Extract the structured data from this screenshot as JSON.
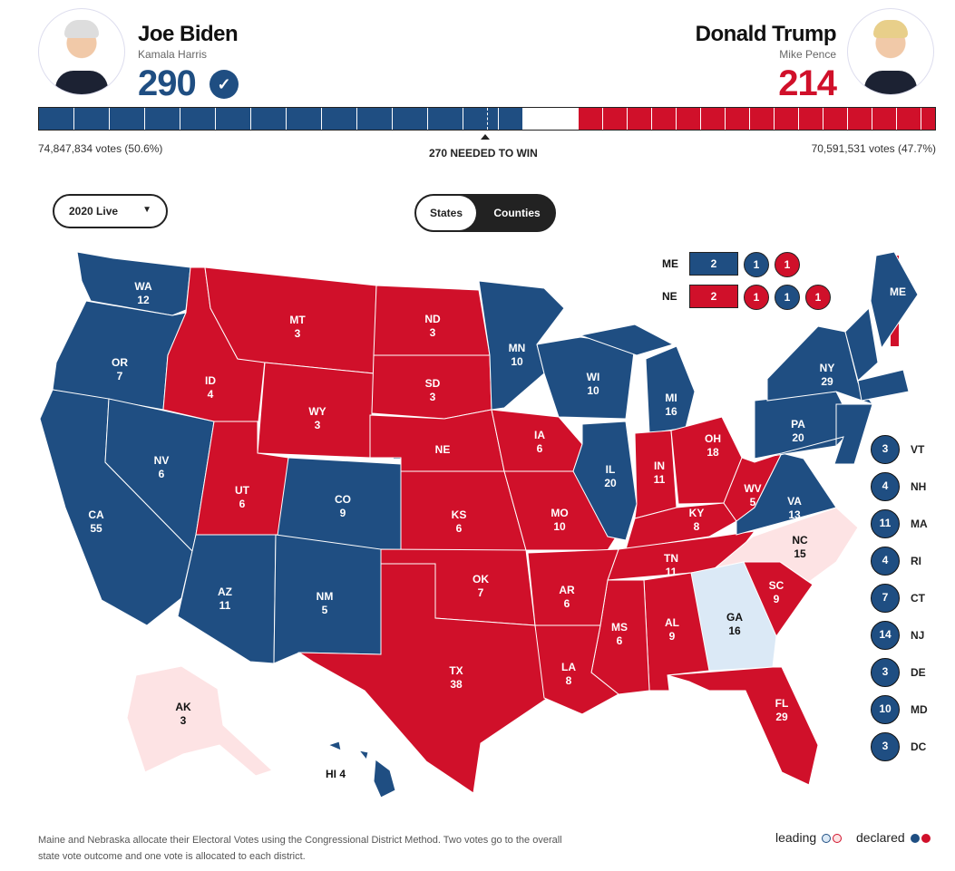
{
  "colors": {
    "dem": "#1f4e82",
    "rep": "#d0102a",
    "dem_leading": "#dbe9f6",
    "rep_leading": "#fde3e4"
  },
  "biden": {
    "name": "Joe Biden",
    "running_mate": "Kamala Harris",
    "ev": "290",
    "votes": "74,847,834 votes (50.6%)",
    "declared_icon": "check-circle-icon",
    "bar_fraction": 0.539
  },
  "trump": {
    "name": "Donald Trump",
    "running_mate": "Mike Pence",
    "ev": "214",
    "votes": "70,591,531 votes (47.7%)",
    "bar_fraction": 0.398
  },
  "needed": "270 NEEDED TO WIN",
  "controls": {
    "year_select": "2020 Live",
    "toggle": [
      "States",
      "Counties"
    ],
    "selected": "States"
  },
  "split_states": [
    {
      "abbr": "ME",
      "boxes": [
        {
          "v": "2",
          "p": "dem"
        },
        {
          "v": "1",
          "p": "dem"
        },
        {
          "v": "1",
          "p": "rep"
        }
      ]
    },
    {
      "abbr": "NE",
      "boxes": [
        {
          "v": "2",
          "p": "rep"
        },
        {
          "v": "1",
          "p": "rep"
        },
        {
          "v": "1",
          "p": "dem"
        },
        {
          "v": "1",
          "p": "rep"
        }
      ]
    }
  ],
  "small_states": [
    {
      "abbr": "VT",
      "ev": "3"
    },
    {
      "abbr": "NH",
      "ev": "4"
    },
    {
      "abbr": "MA",
      "ev": "11"
    },
    {
      "abbr": "RI",
      "ev": "4"
    },
    {
      "abbr": "CT",
      "ev": "7"
    },
    {
      "abbr": "NJ",
      "ev": "14"
    },
    {
      "abbr": "DE",
      "ev": "3"
    },
    {
      "abbr": "MD",
      "ev": "10"
    },
    {
      "abbr": "DC",
      "ev": "3"
    }
  ],
  "states": [
    {
      "abbr": "WA",
      "ev": "12",
      "s": "dem"
    },
    {
      "abbr": "OR",
      "ev": "7",
      "s": "dem"
    },
    {
      "abbr": "CA",
      "ev": "55",
      "s": "dem"
    },
    {
      "abbr": "NV",
      "ev": "6",
      "s": "dem"
    },
    {
      "abbr": "ID",
      "ev": "4",
      "s": "rep"
    },
    {
      "abbr": "MT",
      "ev": "3",
      "s": "rep"
    },
    {
      "abbr": "WY",
      "ev": "3",
      "s": "rep"
    },
    {
      "abbr": "UT",
      "ev": "6",
      "s": "rep"
    },
    {
      "abbr": "CO",
      "ev": "9",
      "s": "dem"
    },
    {
      "abbr": "AZ",
      "ev": "11",
      "s": "dem"
    },
    {
      "abbr": "NM",
      "ev": "5",
      "s": "dem"
    },
    {
      "abbr": "ND",
      "ev": "3",
      "s": "rep"
    },
    {
      "abbr": "SD",
      "ev": "3",
      "s": "rep"
    },
    {
      "abbr": "NE",
      "ev": "",
      "s": "rep"
    },
    {
      "abbr": "KS",
      "ev": "6",
      "s": "rep"
    },
    {
      "abbr": "OK",
      "ev": "7",
      "s": "rep"
    },
    {
      "abbr": "TX",
      "ev": "38",
      "s": "rep"
    },
    {
      "abbr": "MN",
      "ev": "10",
      "s": "dem"
    },
    {
      "abbr": "IA",
      "ev": "6",
      "s": "rep"
    },
    {
      "abbr": "MO",
      "ev": "10",
      "s": "rep"
    },
    {
      "abbr": "AR",
      "ev": "6",
      "s": "rep"
    },
    {
      "abbr": "LA",
      "ev": "8",
      "s": "rep"
    },
    {
      "abbr": "WI",
      "ev": "10",
      "s": "dem"
    },
    {
      "abbr": "IL",
      "ev": "20",
      "s": "dem"
    },
    {
      "abbr": "MI",
      "ev": "16",
      "s": "dem"
    },
    {
      "abbr": "IN",
      "ev": "11",
      "s": "rep"
    },
    {
      "abbr": "OH",
      "ev": "18",
      "s": "rep"
    },
    {
      "abbr": "KY",
      "ev": "8",
      "s": "rep"
    },
    {
      "abbr": "TN",
      "ev": "11",
      "s": "rep"
    },
    {
      "abbr": "MS",
      "ev": "6",
      "s": "rep"
    },
    {
      "abbr": "AL",
      "ev": "9",
      "s": "rep"
    },
    {
      "abbr": "WV",
      "ev": "5",
      "s": "rep"
    },
    {
      "abbr": "VA",
      "ev": "13",
      "s": "dem"
    },
    {
      "abbr": "NC",
      "ev": "15",
      "s": "rep_leading"
    },
    {
      "abbr": "SC",
      "ev": "9",
      "s": "rep"
    },
    {
      "abbr": "GA",
      "ev": "16",
      "s": "dem_leading"
    },
    {
      "abbr": "FL",
      "ev": "29",
      "s": "rep"
    },
    {
      "abbr": "PA",
      "ev": "20",
      "s": "dem"
    },
    {
      "abbr": "NY",
      "ev": "29",
      "s": "dem"
    },
    {
      "abbr": "ME",
      "ev": "",
      "s": "dem"
    },
    {
      "abbr": "AK",
      "ev": "3",
      "s": "rep_leading"
    },
    {
      "abbr": "HI",
      "ev": "4",
      "s": "dem"
    }
  ],
  "footnote": "Maine and Nebraska allocate their Electoral Votes using the Congressional District Method. Two votes go to the overall state vote outcome and one vote is allocated to each district.",
  "legend": {
    "leading": "leading",
    "declared": "declared"
  }
}
